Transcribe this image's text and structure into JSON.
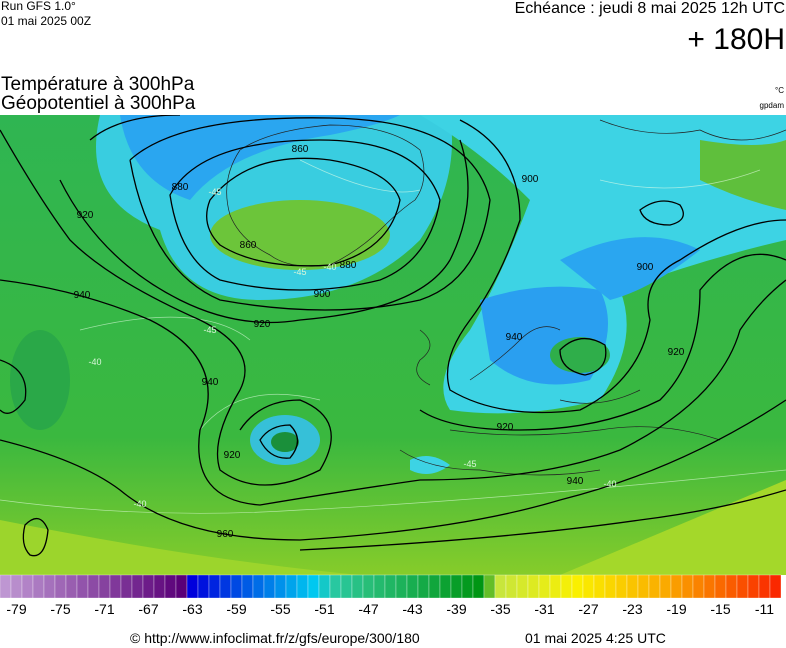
{
  "header": {
    "run": "Run GFS 1.0°",
    "run_date": "01 mai 2025 00Z",
    "valid": "Echéance : jeudi 8 mai 2025 12h UTC",
    "lead": "+ 180H",
    "title_1": "Température à 300hPa",
    "title_2": "Géopotentiel à 300hPa",
    "unit_temp": "°C",
    "unit_geo": "gpdam"
  },
  "map": {
    "contour_labels": [
      860,
      860,
      880,
      880,
      900,
      900,
      900,
      920,
      920,
      920,
      920,
      920,
      940,
      940,
      940,
      940,
      960
    ],
    "isotherm_labels": [
      -45,
      -45,
      -45,
      -40,
      -40,
      -40,
      -45,
      -40
    ]
  },
  "colorbar": {
    "ticks": [
      -79,
      -75,
      -71,
      -67,
      -63,
      -59,
      -55,
      -51,
      -47,
      -43,
      -39,
      -35,
      -31,
      -27,
      -23,
      -19,
      -15,
      -11
    ]
  },
  "footer": {
    "url": "© http://www.infoclimat.fr/z/gfs/europe/300/180",
    "generated": "01 mai 2025  4:25 UTC"
  }
}
